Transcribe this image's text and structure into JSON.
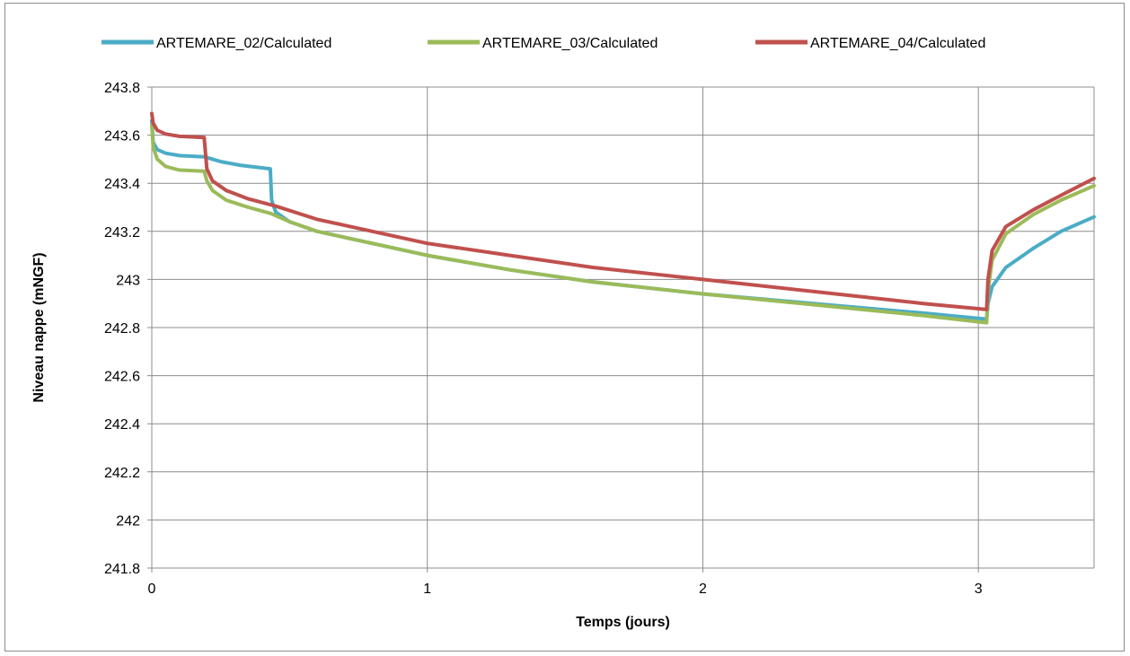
{
  "chart_data": {
    "type": "line",
    "title": "",
    "xlabel": "Temps (jours)",
    "ylabel": "Niveau nappe (mNGF)",
    "xlim": [
      0,
      3.42
    ],
    "ylim": [
      241.8,
      243.8
    ],
    "x_ticks": [
      0,
      1,
      2,
      3
    ],
    "x_tick_labels": [
      "0",
      "1",
      "2",
      "3"
    ],
    "y_ticks": [
      241.8,
      242,
      242.2,
      242.4,
      242.6,
      242.8,
      243,
      243.2,
      243.4,
      243.6,
      243.8
    ],
    "y_tick_labels": [
      "241.8",
      "242",
      "242.2",
      "242.4",
      "242.6",
      "242.8",
      "243",
      "243.2",
      "243.4",
      "243.6",
      "243.8"
    ],
    "grid": true,
    "legend_position": "top",
    "series": [
      {
        "name": "ARTEMARE_02/Calculated",
        "color": "#4bacc6",
        "points": [
          [
            0,
            243.66
          ],
          [
            0.005,
            243.57
          ],
          [
            0.02,
            243.54
          ],
          [
            0.05,
            243.525
          ],
          [
            0.1,
            243.515
          ],
          [
            0.19,
            243.51
          ],
          [
            0.25,
            243.49
          ],
          [
            0.32,
            243.475
          ],
          [
            0.43,
            243.46
          ],
          [
            0.435,
            243.33
          ],
          [
            0.45,
            243.28
          ],
          [
            0.5,
            243.24
          ],
          [
            0.6,
            243.2
          ],
          [
            0.8,
            243.15
          ],
          [
            1.0,
            243.1
          ],
          [
            1.3,
            243.04
          ],
          [
            1.6,
            242.99
          ],
          [
            2.0,
            242.94
          ],
          [
            2.4,
            242.9
          ],
          [
            2.8,
            242.86
          ],
          [
            3.03,
            242.835
          ],
          [
            3.035,
            242.9
          ],
          [
            3.05,
            242.97
          ],
          [
            3.1,
            243.05
          ],
          [
            3.2,
            243.13
          ],
          [
            3.3,
            243.2
          ],
          [
            3.42,
            243.26
          ]
        ]
      },
      {
        "name": "ARTEMARE_03/Calculated",
        "color": "#9bbb59",
        "points": [
          [
            0,
            243.64
          ],
          [
            0.005,
            243.55
          ],
          [
            0.02,
            243.5
          ],
          [
            0.05,
            243.47
          ],
          [
            0.1,
            243.455
          ],
          [
            0.19,
            243.45
          ],
          [
            0.2,
            243.41
          ],
          [
            0.22,
            243.37
          ],
          [
            0.27,
            243.33
          ],
          [
            0.35,
            243.3
          ],
          [
            0.43,
            243.275
          ],
          [
            0.5,
            243.24
          ],
          [
            0.6,
            243.2
          ],
          [
            0.8,
            243.15
          ],
          [
            1.0,
            243.1
          ],
          [
            1.3,
            243.04
          ],
          [
            1.6,
            242.99
          ],
          [
            2.0,
            242.94
          ],
          [
            2.4,
            242.895
          ],
          [
            2.8,
            242.85
          ],
          [
            3.03,
            242.82
          ],
          [
            3.035,
            242.95
          ],
          [
            3.05,
            243.08
          ],
          [
            3.1,
            243.19
          ],
          [
            3.2,
            243.27
          ],
          [
            3.3,
            243.33
          ],
          [
            3.42,
            243.39
          ]
        ]
      },
      {
        "name": "ARTEMARE_04/Calculated",
        "color": "#c0504d",
        "points": [
          [
            0,
            243.69
          ],
          [
            0.005,
            243.65
          ],
          [
            0.02,
            243.62
          ],
          [
            0.05,
            243.605
          ],
          [
            0.1,
            243.595
          ],
          [
            0.19,
            243.59
          ],
          [
            0.2,
            243.46
          ],
          [
            0.22,
            243.41
          ],
          [
            0.27,
            243.37
          ],
          [
            0.35,
            243.335
          ],
          [
            0.45,
            243.305
          ],
          [
            0.6,
            243.25
          ],
          [
            0.8,
            243.2
          ],
          [
            1.0,
            243.15
          ],
          [
            1.3,
            243.1
          ],
          [
            1.6,
            243.05
          ],
          [
            2.0,
            243.0
          ],
          [
            2.4,
            242.95
          ],
          [
            2.8,
            242.9
          ],
          [
            3.03,
            242.875
          ],
          [
            3.035,
            243.0
          ],
          [
            3.05,
            243.12
          ],
          [
            3.1,
            243.22
          ],
          [
            3.2,
            243.29
          ],
          [
            3.3,
            243.35
          ],
          [
            3.42,
            243.42
          ]
        ]
      }
    ]
  }
}
